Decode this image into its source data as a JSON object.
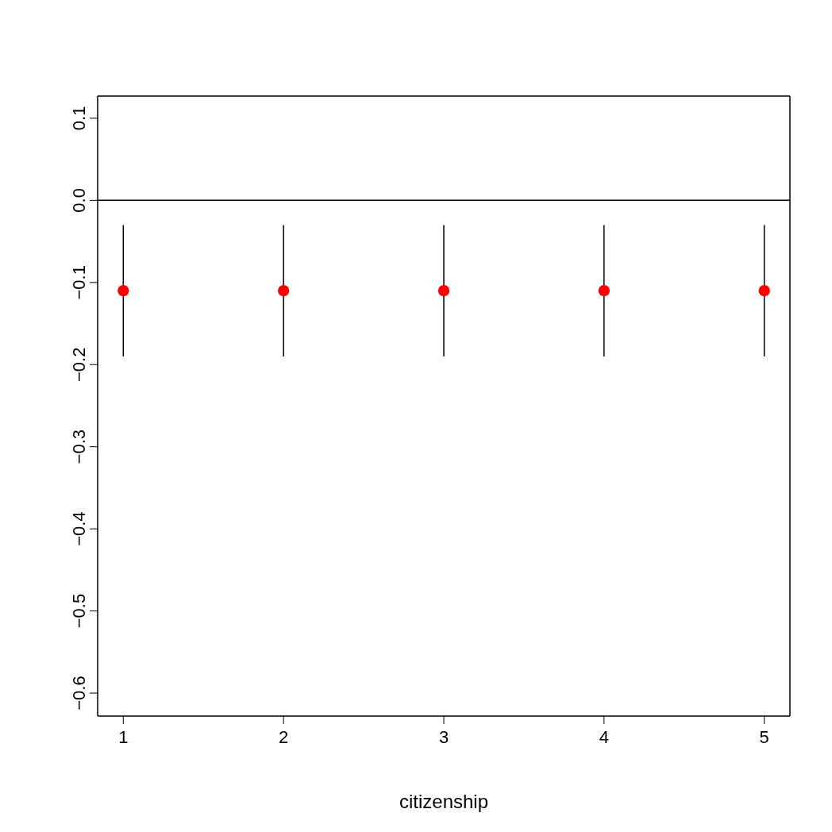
{
  "chart_data": {
    "type": "scatter",
    "xlabel": "citizenship",
    "x": [
      1,
      2,
      3,
      4,
      5
    ],
    "values": [
      -0.11,
      -0.11,
      -0.11,
      -0.11,
      -0.11
    ],
    "errors": [
      0.08,
      0.08,
      0.08,
      0.08,
      0.08
    ],
    "color": "#ff0000",
    "xlim": [
      0.84,
      5.16
    ],
    "xticks": [
      1,
      2,
      3,
      4,
      5
    ],
    "ylim": [
      -0.628,
      0.127
    ],
    "yticks": [
      -0.6,
      -0.5,
      -0.4,
      -0.3,
      -0.2,
      -0.1,
      {
        "value": 0,
        "label": "0.0"
      },
      0.1
    ],
    "ref_lines": [
      {
        "axis": "y",
        "value": 0,
        "color": "#000000"
      }
    ],
    "marker": "circle",
    "grid": false,
    "legend": false
  }
}
